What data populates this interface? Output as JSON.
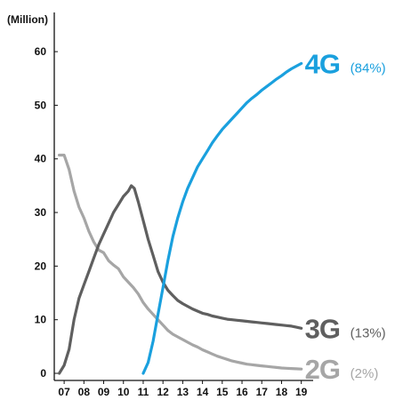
{
  "chart_data": {
    "type": "line",
    "unit_label": "(Million)",
    "x_ticks": [
      "07",
      "08",
      "09",
      "10",
      "11",
      "12",
      "13",
      "14",
      "15",
      "16",
      "17",
      "18",
      "19"
    ],
    "y_ticks": [
      0,
      10,
      20,
      30,
      40,
      50,
      60
    ],
    "xlim": [
      2006.5,
      2019.6
    ],
    "ylim": [
      0,
      63
    ],
    "grid": false,
    "series": [
      {
        "name": "2G",
        "share": "(2%)",
        "color": "#a6a6a6",
        "points": [
          [
            2006.75,
            40.7
          ],
          [
            2007.0,
            40.7
          ],
          [
            2007.25,
            38
          ],
          [
            2007.5,
            34
          ],
          [
            2007.75,
            31
          ],
          [
            2008.0,
            29
          ],
          [
            2008.25,
            26.5
          ],
          [
            2008.5,
            24.5
          ],
          [
            2008.75,
            23
          ],
          [
            2009.0,
            22.5
          ],
          [
            2009.25,
            21
          ],
          [
            2009.5,
            20.2
          ],
          [
            2009.75,
            19.5
          ],
          [
            2010.0,
            18
          ],
          [
            2010.25,
            17
          ],
          [
            2010.5,
            16
          ],
          [
            2010.75,
            14.8
          ],
          [
            2011.0,
            13.2
          ],
          [
            2011.25,
            12
          ],
          [
            2011.5,
            11
          ],
          [
            2011.75,
            10
          ],
          [
            2012.0,
            9
          ],
          [
            2012.25,
            8
          ],
          [
            2012.5,
            7.3
          ],
          [
            2012.75,
            6.8
          ],
          [
            2013.0,
            6.3
          ],
          [
            2013.25,
            5.8
          ],
          [
            2013.5,
            5.3
          ],
          [
            2013.75,
            4.9
          ],
          [
            2014.0,
            4.4
          ],
          [
            2014.25,
            4.0
          ],
          [
            2014.5,
            3.6
          ],
          [
            2014.75,
            3.2
          ],
          [
            2015.0,
            2.9
          ],
          [
            2015.25,
            2.6
          ],
          [
            2015.5,
            2.3
          ],
          [
            2015.75,
            2.1
          ],
          [
            2016.0,
            1.9
          ],
          [
            2016.25,
            1.7
          ],
          [
            2016.5,
            1.6
          ],
          [
            2016.75,
            1.5
          ],
          [
            2017.0,
            1.4
          ],
          [
            2017.25,
            1.3
          ],
          [
            2017.5,
            1.2
          ],
          [
            2017.75,
            1.1
          ],
          [
            2018.0,
            1.0
          ],
          [
            2018.25,
            0.95
          ],
          [
            2018.5,
            0.9
          ],
          [
            2018.75,
            0.85
          ],
          [
            2019.0,
            0.8
          ]
        ]
      },
      {
        "name": "3G",
        "share": "(13%)",
        "color": "#5f5f5f",
        "points": [
          [
            2006.75,
            0
          ],
          [
            2007.0,
            1.5
          ],
          [
            2007.25,
            4.5
          ],
          [
            2007.5,
            10
          ],
          [
            2007.75,
            14
          ],
          [
            2008.0,
            16.5
          ],
          [
            2008.25,
            19
          ],
          [
            2008.5,
            21.5
          ],
          [
            2008.75,
            24
          ],
          [
            2009.0,
            26
          ],
          [
            2009.25,
            28
          ],
          [
            2009.5,
            30
          ],
          [
            2009.75,
            31.5
          ],
          [
            2010.0,
            33
          ],
          [
            2010.25,
            34
          ],
          [
            2010.4,
            35
          ],
          [
            2010.55,
            34.5
          ],
          [
            2010.75,
            32
          ],
          [
            2011.0,
            28.5
          ],
          [
            2011.25,
            25
          ],
          [
            2011.5,
            22
          ],
          [
            2011.75,
            19
          ],
          [
            2012.0,
            17
          ],
          [
            2012.25,
            15.5
          ],
          [
            2012.5,
            14.5
          ],
          [
            2012.75,
            13.6
          ],
          [
            2013.0,
            13
          ],
          [
            2013.25,
            12.5
          ],
          [
            2013.5,
            12
          ],
          [
            2013.75,
            11.6
          ],
          [
            2014.0,
            11.2
          ],
          [
            2014.25,
            11
          ],
          [
            2014.5,
            10.7
          ],
          [
            2014.75,
            10.5
          ],
          [
            2015.0,
            10.3
          ],
          [
            2015.25,
            10.1
          ],
          [
            2015.5,
            10
          ],
          [
            2015.75,
            9.9
          ],
          [
            2016.0,
            9.8
          ],
          [
            2016.25,
            9.7
          ],
          [
            2016.5,
            9.6
          ],
          [
            2016.75,
            9.5
          ],
          [
            2017.0,
            9.4
          ],
          [
            2017.25,
            9.3
          ],
          [
            2017.5,
            9.2
          ],
          [
            2017.75,
            9.1
          ],
          [
            2018.0,
            9.0
          ],
          [
            2018.25,
            8.9
          ],
          [
            2018.5,
            8.8
          ],
          [
            2018.75,
            8.6
          ],
          [
            2019.0,
            8.4
          ]
        ]
      },
      {
        "name": "4G",
        "share": "(84%)",
        "color": "#1aa0de",
        "points": [
          [
            2011.0,
            0
          ],
          [
            2011.25,
            2
          ],
          [
            2011.5,
            6
          ],
          [
            2011.75,
            11
          ],
          [
            2012.0,
            16
          ],
          [
            2012.25,
            21
          ],
          [
            2012.5,
            25.5
          ],
          [
            2012.75,
            29
          ],
          [
            2013.0,
            32
          ],
          [
            2013.25,
            34.5
          ],
          [
            2013.5,
            36.5
          ],
          [
            2013.75,
            38.5
          ],
          [
            2014.0,
            40
          ],
          [
            2014.25,
            41.5
          ],
          [
            2014.5,
            43
          ],
          [
            2014.75,
            44.3
          ],
          [
            2015.0,
            45.5
          ],
          [
            2015.25,
            46.5
          ],
          [
            2015.5,
            47.5
          ],
          [
            2015.75,
            48.5
          ],
          [
            2016.0,
            49.5
          ],
          [
            2016.25,
            50.5
          ],
          [
            2016.5,
            51.3
          ],
          [
            2016.75,
            52
          ],
          [
            2017.0,
            52.8
          ],
          [
            2017.25,
            53.5
          ],
          [
            2017.5,
            54.2
          ],
          [
            2017.75,
            54.9
          ],
          [
            2018.0,
            55.5
          ],
          [
            2018.25,
            56.2
          ],
          [
            2018.5,
            56.8
          ],
          [
            2018.75,
            57.3
          ],
          [
            2019.0,
            57.8
          ]
        ]
      }
    ]
  }
}
